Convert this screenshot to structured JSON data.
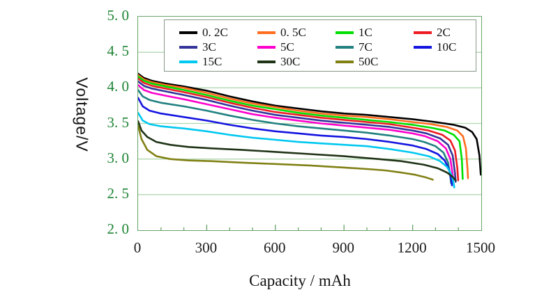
{
  "chart_data": {
    "type": "line",
    "title": "",
    "xlabel": "Capacity / mAh",
    "ylabel": "Voltage/V",
    "xlim": [
      0,
      1500
    ],
    "ylim": [
      2.0,
      5.0
    ],
    "x_ticks": [
      "0",
      "300",
      "600",
      "900",
      "1200",
      "1500"
    ],
    "x_tick_values": [
      0,
      300,
      600,
      900,
      1200,
      1500
    ],
    "x_minor_tick_step": 100,
    "y_ticks": [
      "5. 0",
      "4. 5",
      "4. 0",
      "3. 5",
      "3. 0",
      "2. 5",
      "2. 0"
    ],
    "y_tick_values": [
      5.0,
      4.5,
      4.0,
      3.5,
      3.0,
      2.5,
      2.0
    ],
    "grid": "horizontal",
    "gridline_values": [
      4.5,
      4.0,
      3.5,
      3.0,
      2.5
    ],
    "legend_position": "top-inside",
    "colors": {
      "axis_border": "#69A369",
      "gridline": "#AFD7AF",
      "y_tick_label": "#1E8434",
      "x_tick_label": "#1A1A1A",
      "legend_border": "#879787"
    },
    "series": [
      {
        "name": "0. 2C",
        "color": "#000000",
        "points": [
          [
            0,
            4.2
          ],
          [
            25,
            4.14
          ],
          [
            60,
            4.1
          ],
          [
            120,
            4.06
          ],
          [
            200,
            4.02
          ],
          [
            300,
            3.96
          ],
          [
            400,
            3.88
          ],
          [
            500,
            3.81
          ],
          [
            600,
            3.75
          ],
          [
            700,
            3.71
          ],
          [
            800,
            3.67
          ],
          [
            900,
            3.64
          ],
          [
            1000,
            3.62
          ],
          [
            1100,
            3.59
          ],
          [
            1200,
            3.56
          ],
          [
            1300,
            3.52
          ],
          [
            1380,
            3.48
          ],
          [
            1430,
            3.44
          ],
          [
            1460,
            3.38
          ],
          [
            1480,
            3.28
          ],
          [
            1492,
            3.05
          ],
          [
            1498,
            2.78
          ]
        ]
      },
      {
        "name": "0. 5C",
        "color": "#FF6D1F",
        "points": [
          [
            0,
            4.18
          ],
          [
            25,
            4.12
          ],
          [
            60,
            4.08
          ],
          [
            120,
            4.04
          ],
          [
            200,
            4.0
          ],
          [
            300,
            3.93
          ],
          [
            400,
            3.85
          ],
          [
            500,
            3.78
          ],
          [
            600,
            3.73
          ],
          [
            700,
            3.68
          ],
          [
            800,
            3.64
          ],
          [
            900,
            3.61
          ],
          [
            1000,
            3.59
          ],
          [
            1100,
            3.56
          ],
          [
            1200,
            3.52
          ],
          [
            1280,
            3.49
          ],
          [
            1350,
            3.45
          ],
          [
            1395,
            3.4
          ],
          [
            1420,
            3.32
          ],
          [
            1433,
            3.15
          ],
          [
            1440,
            2.85
          ],
          [
            1442,
            2.73
          ]
        ]
      },
      {
        "name": "1C",
        "color": "#00DF00",
        "points": [
          [
            0,
            4.16
          ],
          [
            25,
            4.1
          ],
          [
            60,
            4.06
          ],
          [
            120,
            4.02
          ],
          [
            200,
            3.97
          ],
          [
            300,
            3.9
          ],
          [
            400,
            3.82
          ],
          [
            500,
            3.75
          ],
          [
            600,
            3.7
          ],
          [
            700,
            3.65
          ],
          [
            800,
            3.61
          ],
          [
            900,
            3.58
          ],
          [
            1000,
            3.55
          ],
          [
            1100,
            3.52
          ],
          [
            1200,
            3.48
          ],
          [
            1280,
            3.44
          ],
          [
            1340,
            3.4
          ],
          [
            1380,
            3.34
          ],
          [
            1405,
            3.25
          ],
          [
            1415,
            3.0
          ],
          [
            1419,
            2.72
          ]
        ]
      },
      {
        "name": "2C",
        "color": "#EE1C23",
        "points": [
          [
            0,
            4.13
          ],
          [
            25,
            4.07
          ],
          [
            60,
            4.03
          ],
          [
            120,
            3.99
          ],
          [
            200,
            3.94
          ],
          [
            300,
            3.87
          ],
          [
            400,
            3.79
          ],
          [
            500,
            3.72
          ],
          [
            600,
            3.66
          ],
          [
            700,
            3.62
          ],
          [
            800,
            3.58
          ],
          [
            900,
            3.55
          ],
          [
            1000,
            3.52
          ],
          [
            1100,
            3.49
          ],
          [
            1200,
            3.44
          ],
          [
            1270,
            3.4
          ],
          [
            1330,
            3.34
          ],
          [
            1365,
            3.26
          ],
          [
            1385,
            3.12
          ],
          [
            1395,
            2.88
          ],
          [
            1399,
            2.7
          ]
        ]
      },
      {
        "name": "3C",
        "color": "#333399",
        "points": [
          [
            0,
            4.09
          ],
          [
            25,
            4.03
          ],
          [
            60,
            3.99
          ],
          [
            120,
            3.95
          ],
          [
            200,
            3.9
          ],
          [
            300,
            3.83
          ],
          [
            400,
            3.75
          ],
          [
            500,
            3.68
          ],
          [
            600,
            3.62
          ],
          [
            700,
            3.58
          ],
          [
            800,
            3.54
          ],
          [
            900,
            3.51
          ],
          [
            1000,
            3.48
          ],
          [
            1100,
            3.45
          ],
          [
            1200,
            3.4
          ],
          [
            1260,
            3.36
          ],
          [
            1320,
            3.29
          ],
          [
            1355,
            3.2
          ],
          [
            1375,
            3.05
          ],
          [
            1385,
            2.8
          ],
          [
            1388,
            2.68
          ]
        ]
      },
      {
        "name": "5C",
        "color": "#FF00CC",
        "points": [
          [
            0,
            4.04
          ],
          [
            25,
            3.97
          ],
          [
            60,
            3.93
          ],
          [
            120,
            3.89
          ],
          [
            200,
            3.84
          ],
          [
            300,
            3.77
          ],
          [
            400,
            3.7
          ],
          [
            500,
            3.63
          ],
          [
            600,
            3.58
          ],
          [
            700,
            3.54
          ],
          [
            800,
            3.5
          ],
          [
            900,
            3.47
          ],
          [
            1000,
            3.44
          ],
          [
            1100,
            3.41
          ],
          [
            1200,
            3.36
          ],
          [
            1255,
            3.32
          ],
          [
            1310,
            3.25
          ],
          [
            1345,
            3.15
          ],
          [
            1365,
            3.0
          ],
          [
            1375,
            2.78
          ],
          [
            1378,
            2.67
          ]
        ]
      },
      {
        "name": "7C",
        "color": "#218080",
        "points": [
          [
            0,
            3.97
          ],
          [
            20,
            3.88
          ],
          [
            50,
            3.83
          ],
          [
            100,
            3.79
          ],
          [
            200,
            3.74
          ],
          [
            300,
            3.68
          ],
          [
            400,
            3.61
          ],
          [
            500,
            3.55
          ],
          [
            600,
            3.5
          ],
          [
            700,
            3.46
          ],
          [
            800,
            3.43
          ],
          [
            900,
            3.4
          ],
          [
            1000,
            3.37
          ],
          [
            1100,
            3.33
          ],
          [
            1200,
            3.28
          ],
          [
            1250,
            3.24
          ],
          [
            1300,
            3.18
          ],
          [
            1335,
            3.09
          ],
          [
            1355,
            2.95
          ],
          [
            1365,
            2.75
          ],
          [
            1368,
            2.66
          ]
        ]
      },
      {
        "name": "10C",
        "color": "#1414E0",
        "points": [
          [
            0,
            3.86
          ],
          [
            20,
            3.74
          ],
          [
            50,
            3.68
          ],
          [
            100,
            3.64
          ],
          [
            200,
            3.59
          ],
          [
            300,
            3.54
          ],
          [
            400,
            3.48
          ],
          [
            500,
            3.43
          ],
          [
            600,
            3.39
          ],
          [
            700,
            3.36
          ],
          [
            800,
            3.33
          ],
          [
            900,
            3.31
          ],
          [
            1000,
            3.28
          ],
          [
            1100,
            3.24
          ],
          [
            1200,
            3.19
          ],
          [
            1260,
            3.14
          ],
          [
            1310,
            3.07
          ],
          [
            1340,
            2.98
          ],
          [
            1360,
            2.85
          ],
          [
            1370,
            2.68
          ],
          [
            1372,
            2.63
          ]
        ]
      },
      {
        "name": "15C",
        "color": "#00C8F0",
        "points": [
          [
            0,
            3.65
          ],
          [
            20,
            3.54
          ],
          [
            50,
            3.49
          ],
          [
            100,
            3.46
          ],
          [
            200,
            3.43
          ],
          [
            300,
            3.39
          ],
          [
            400,
            3.34
          ],
          [
            500,
            3.3
          ],
          [
            600,
            3.27
          ],
          [
            700,
            3.24
          ],
          [
            800,
            3.22
          ],
          [
            900,
            3.2
          ],
          [
            1000,
            3.18
          ],
          [
            1100,
            3.14
          ],
          [
            1200,
            3.09
          ],
          [
            1270,
            3.04
          ],
          [
            1320,
            2.97
          ],
          [
            1350,
            2.89
          ],
          [
            1370,
            2.78
          ],
          [
            1380,
            2.65
          ],
          [
            1382,
            2.6
          ]
        ]
      },
      {
        "name": "30C",
        "color": "#1F3316",
        "points": [
          [
            0,
            3.53
          ],
          [
            15,
            3.4
          ],
          [
            40,
            3.31
          ],
          [
            80,
            3.24
          ],
          [
            140,
            3.2
          ],
          [
            220,
            3.17
          ],
          [
            320,
            3.15
          ],
          [
            450,
            3.13
          ],
          [
            600,
            3.1
          ],
          [
            750,
            3.07
          ],
          [
            900,
            3.04
          ],
          [
            1050,
            3.0
          ],
          [
            1150,
            2.97
          ],
          [
            1250,
            2.92
          ],
          [
            1310,
            2.87
          ],
          [
            1350,
            2.81
          ],
          [
            1375,
            2.75
          ],
          [
            1388,
            2.7
          ]
        ]
      },
      {
        "name": "50C",
        "color": "#808014",
        "points": [
          [
            0,
            3.47
          ],
          [
            15,
            3.28
          ],
          [
            40,
            3.13
          ],
          [
            80,
            3.04
          ],
          [
            140,
            3.0
          ],
          [
            220,
            2.98
          ],
          [
            320,
            2.97
          ],
          [
            450,
            2.95
          ],
          [
            600,
            2.93
          ],
          [
            750,
            2.91
          ],
          [
            900,
            2.88
          ],
          [
            1000,
            2.86
          ],
          [
            1080,
            2.84
          ],
          [
            1150,
            2.81
          ],
          [
            1210,
            2.78
          ],
          [
            1260,
            2.74
          ],
          [
            1288,
            2.71
          ]
        ]
      }
    ]
  }
}
